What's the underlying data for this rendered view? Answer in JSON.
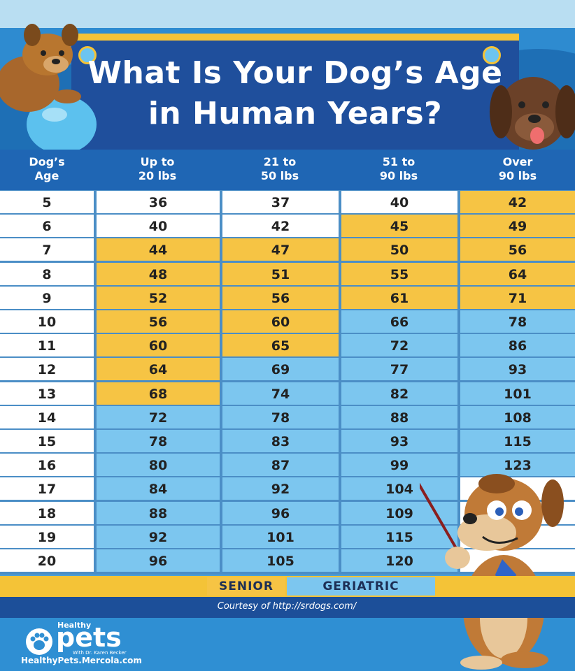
{
  "title": {
    "line1": "What Is Your Dog’s Age",
    "line2": "in Human Years?"
  },
  "columns": [
    {
      "line1": "Dog’s",
      "line2": "Age"
    },
    {
      "line1": "Up to",
      "line2": "20 lbs"
    },
    {
      "line1": "21 to",
      "line2": "50 lbs"
    },
    {
      "line1": "51 to",
      "line2": "90 lbs"
    },
    {
      "line1": "Over",
      "line2": "90 lbs"
    }
  ],
  "rows": [
    {
      "age": "5",
      "values": [
        "36",
        "37",
        "40",
        "42"
      ],
      "status": [
        "none",
        "none",
        "none",
        "senior"
      ]
    },
    {
      "age": "6",
      "values": [
        "40",
        "42",
        "45",
        "49"
      ],
      "status": [
        "none",
        "none",
        "senior",
        "senior"
      ]
    },
    {
      "age": "7",
      "values": [
        "44",
        "47",
        "50",
        "56"
      ],
      "status": [
        "senior",
        "senior",
        "senior",
        "senior"
      ]
    },
    {
      "age": "8",
      "values": [
        "48",
        "51",
        "55",
        "64"
      ],
      "status": [
        "senior",
        "senior",
        "senior",
        "senior"
      ]
    },
    {
      "age": "9",
      "values": [
        "52",
        "56",
        "61",
        "71"
      ],
      "status": [
        "senior",
        "senior",
        "senior",
        "senior"
      ]
    },
    {
      "age": "10",
      "values": [
        "56",
        "60",
        "66",
        "78"
      ],
      "status": [
        "senior",
        "senior",
        "geriatric",
        "geriatric"
      ]
    },
    {
      "age": "11",
      "values": [
        "60",
        "65",
        "72",
        "86"
      ],
      "status": [
        "senior",
        "senior",
        "geriatric",
        "geriatric"
      ]
    },
    {
      "age": "12",
      "values": [
        "64",
        "69",
        "77",
        "93"
      ],
      "status": [
        "senior",
        "geriatric",
        "geriatric",
        "geriatric"
      ]
    },
    {
      "age": "13",
      "values": [
        "68",
        "74",
        "82",
        "101"
      ],
      "status": [
        "senior",
        "geriatric",
        "geriatric",
        "geriatric"
      ]
    },
    {
      "age": "14",
      "values": [
        "72",
        "78",
        "88",
        "108"
      ],
      "status": [
        "geriatric",
        "geriatric",
        "geriatric",
        "geriatric"
      ]
    },
    {
      "age": "15",
      "values": [
        "78",
        "83",
        "93",
        "115"
      ],
      "status": [
        "geriatric",
        "geriatric",
        "geriatric",
        "geriatric"
      ]
    },
    {
      "age": "16",
      "values": [
        "80",
        "87",
        "99",
        "123"
      ],
      "status": [
        "geriatric",
        "geriatric",
        "geriatric",
        "geriatric"
      ]
    },
    {
      "age": "17",
      "values": [
        "84",
        "92",
        "104",
        ""
      ],
      "status": [
        "geriatric",
        "geriatric",
        "geriatric",
        "none"
      ]
    },
    {
      "age": "18",
      "values": [
        "88",
        "96",
        "109",
        ""
      ],
      "status": [
        "geriatric",
        "geriatric",
        "geriatric",
        "none"
      ]
    },
    {
      "age": "19",
      "values": [
        "92",
        "101",
        "115",
        ""
      ],
      "status": [
        "geriatric",
        "geriatric",
        "geriatric",
        "none"
      ]
    },
    {
      "age": "20",
      "values": [
        "96",
        "105",
        "120",
        ""
      ],
      "status": [
        "geriatric",
        "geriatric",
        "geriatric",
        "none"
      ]
    }
  ],
  "legend": {
    "senior": "SENIOR",
    "geriatric": "GERIATRIC"
  },
  "colors": {
    "senior": "#f6c444",
    "geriatric": "#7cc6ef",
    "none": "#ffffff",
    "header": "#1f4f9c"
  },
  "courtesy": "Courtesy of http://srdogs.com/",
  "logo": {
    "healthy": "Healthy",
    "pets": "pets",
    "with": "With Dr. Karen Becker",
    "url": "HealthyPets.Mercola.com"
  },
  "icons": [
    "paw-icon",
    "dog-with-ball-illustration",
    "brown-dog-illustration",
    "pointing-dog-illustration"
  ]
}
